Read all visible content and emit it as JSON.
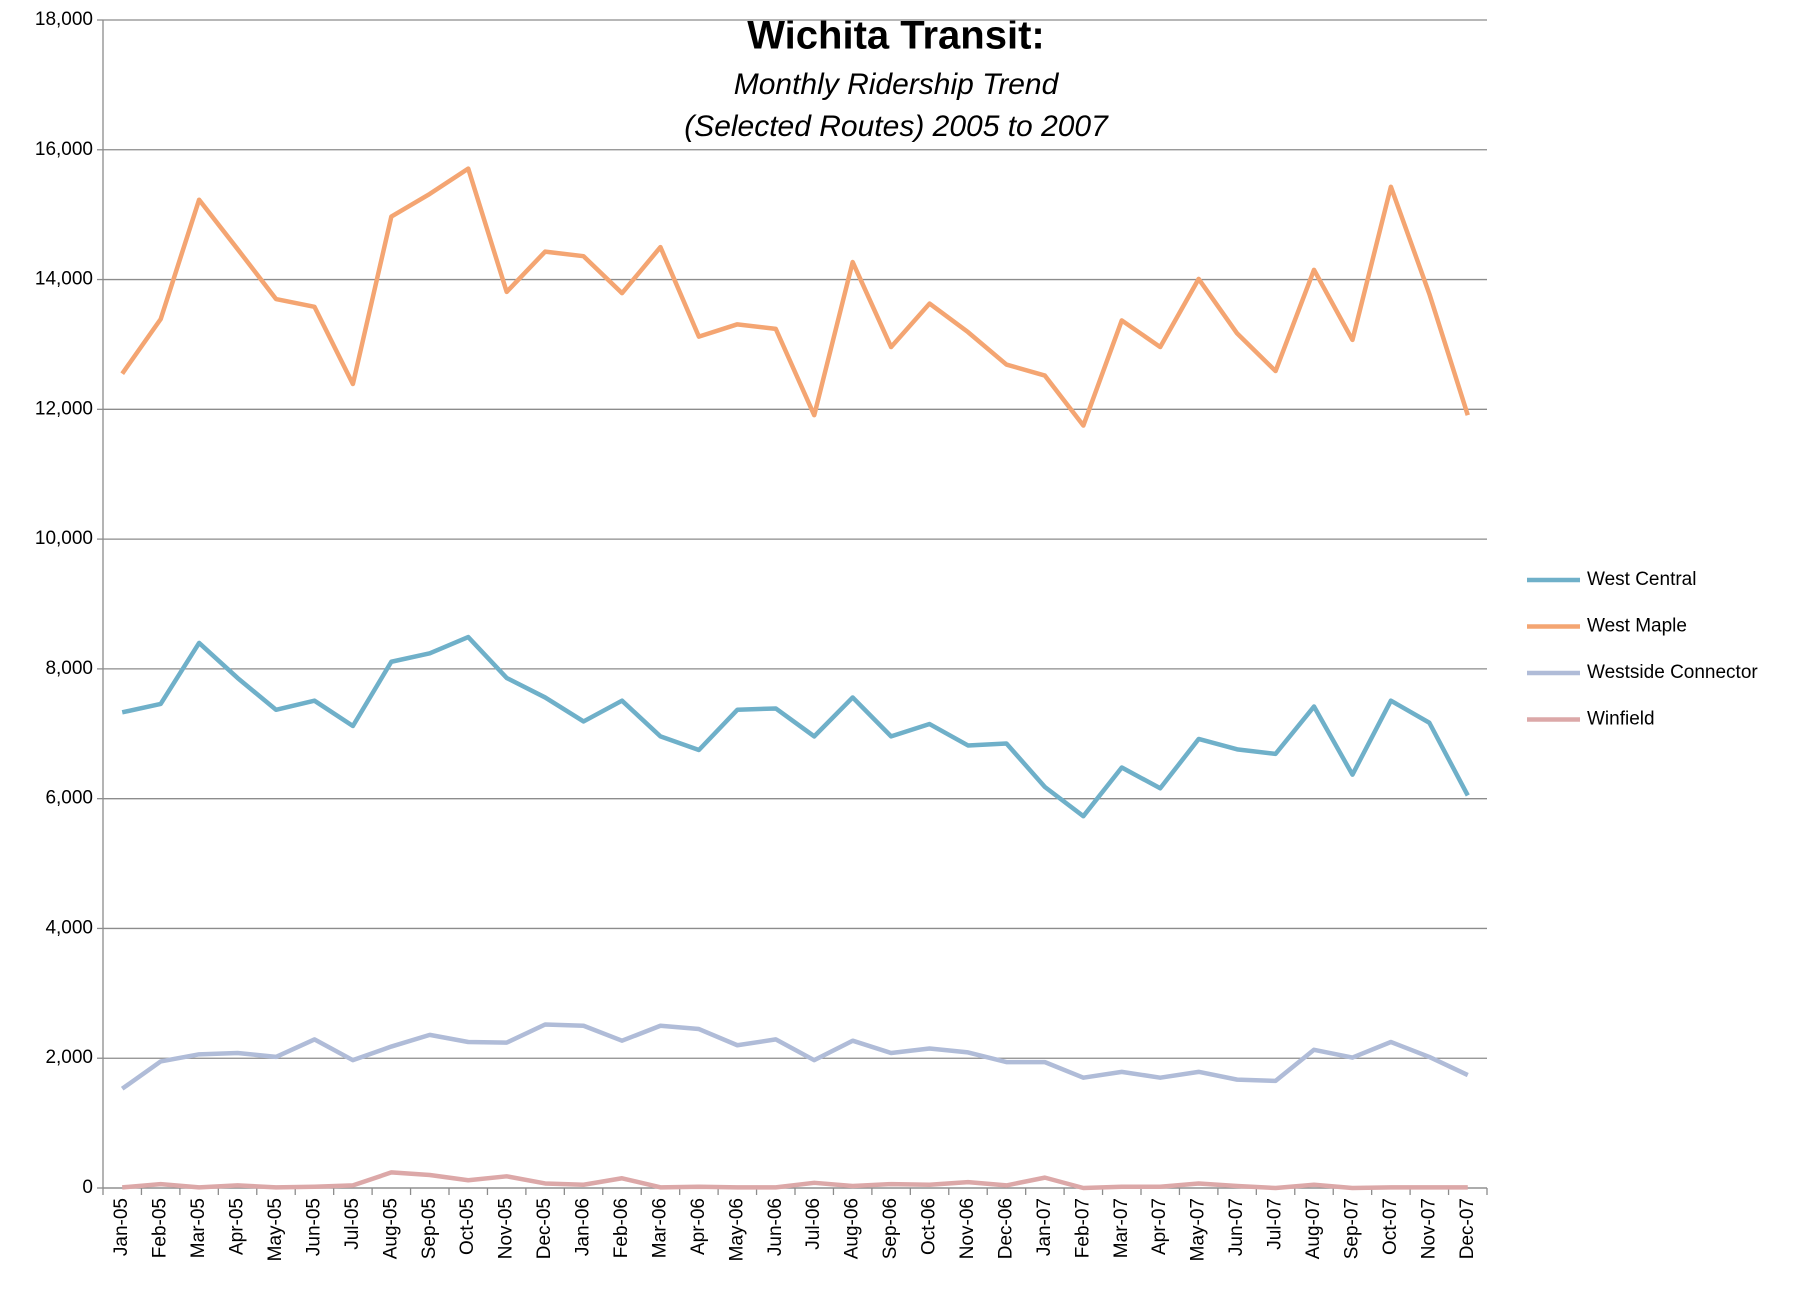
{
  "chart_data": {
    "type": "line",
    "title": "Wichita Transit:",
    "subtitle": [
      "Monthly Ridership Trend",
      "(Selected Routes) 2005 to 2007"
    ],
    "categories": [
      "Jan-05",
      "Feb-05",
      "Mar-05",
      "Apr-05",
      "May-05",
      "Jun-05",
      "Jul-05",
      "Aug-05",
      "Sep-05",
      "Oct-05",
      "Nov-05",
      "Dec-05",
      "Jan-06",
      "Feb-06",
      "Mar-06",
      "Apr-06",
      "May-06",
      "Jun-06",
      "Jul-06",
      "Aug-06",
      "Sep-06",
      "Oct-06",
      "Nov-06",
      "Dec-06",
      "Jan-07",
      "Feb-07",
      "Mar-07",
      "Apr-07",
      "May-07",
      "Jun-07",
      "Jul-07",
      "Aug-07",
      "Sep-07",
      "Oct-07",
      "Nov-07",
      "Dec-07"
    ],
    "series": [
      {
        "name": "West Central",
        "color": "#6fb0c9",
        "values": [
          7330,
          7460,
          8400,
          7860,
          7370,
          7510,
          7120,
          8110,
          8240,
          8490,
          7860,
          7560,
          7190,
          7510,
          6960,
          6750,
          7370,
          7390,
          6960,
          7560,
          6960,
          7150,
          6820,
          6850,
          6180,
          5730,
          6480,
          6160,
          6920,
          6760,
          6690,
          7420,
          6370,
          7510,
          7170,
          6050
        ]
      },
      {
        "name": "West Maple",
        "color": "#f4a572",
        "values": [
          12550,
          13390,
          15230,
          14470,
          13700,
          13580,
          12390,
          14970,
          15320,
          15710,
          13810,
          14430,
          14360,
          13790,
          14500,
          13120,
          13310,
          13240,
          11910,
          14270,
          12960,
          13630,
          13190,
          12690,
          12520,
          11750,
          13370,
          12960,
          14010,
          13170,
          12590,
          14150,
          13070,
          15430,
          13780,
          11910
        ]
      },
      {
        "name": "Westside Connector",
        "color": "#b0bcd8",
        "values": [
          1530,
          1950,
          2060,
          2080,
          2020,
          2290,
          1970,
          2180,
          2360,
          2250,
          2240,
          2520,
          2500,
          2270,
          2500,
          2450,
          2200,
          2290,
          1970,
          2270,
          2080,
          2150,
          2090,
          1940,
          1940,
          1700,
          1790,
          1700,
          1790,
          1670,
          1650,
          2130,
          2010,
          2250,
          2020,
          1740
        ]
      },
      {
        "name": "Winfield",
        "color": "#dca8a8",
        "values": [
          10,
          60,
          10,
          40,
          10,
          20,
          40,
          240,
          200,
          120,
          180,
          70,
          50,
          150,
          10,
          20,
          10,
          10,
          80,
          30,
          60,
          50,
          90,
          40,
          160,
          0,
          20,
          20,
          70,
          30,
          0,
          50,
          0,
          10,
          10,
          10
        ]
      }
    ],
    "ylim": [
      0,
      18000
    ],
    "yticks": [
      0,
      {
        "value": 2000,
        "label": "2,000"
      },
      {
        "value": 4000,
        "label": "4,000"
      },
      {
        "value": 6000,
        "label": "6,000"
      },
      {
        "value": 8000,
        "label": "8,000"
      },
      {
        "value": 10000,
        "label": "10,000"
      },
      {
        "value": 12000,
        "label": "12,000"
      },
      {
        "value": 14000,
        "label": "14,000"
      },
      {
        "value": 16000,
        "label": "16,000"
      },
      {
        "value": 18000,
        "label": "18,000"
      }
    ],
    "grid": true,
    "legend": "right"
  }
}
